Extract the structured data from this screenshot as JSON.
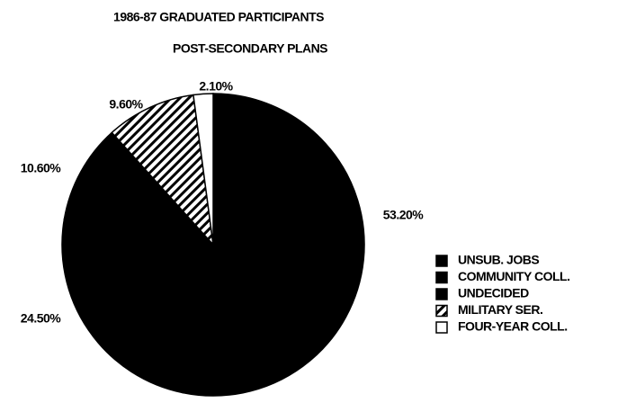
{
  "chart_data": {
    "type": "pie",
    "title": [
      "1986-87 GRADUATED PARTICIPANTS",
      "POST-SECONDARY PLANS"
    ],
    "categories": [
      "UNSUB. JOBS",
      "COMMUNITY COLL.",
      "UNDECIDED",
      "MILITARY SER.",
      "FOUR-YEAR COLL."
    ],
    "values": [
      53.2,
      24.5,
      10.6,
      9.6,
      2.1
    ],
    "value_labels": [
      "53.20%",
      "24.50%",
      "10.60%",
      "9.60%",
      "2.10%"
    ],
    "colors": [
      "#000000",
      "#000000",
      "#000000",
      "#000000",
      "#ffffff"
    ],
    "hatched": [
      false,
      false,
      false,
      true,
      false
    ],
    "legend": "right"
  }
}
